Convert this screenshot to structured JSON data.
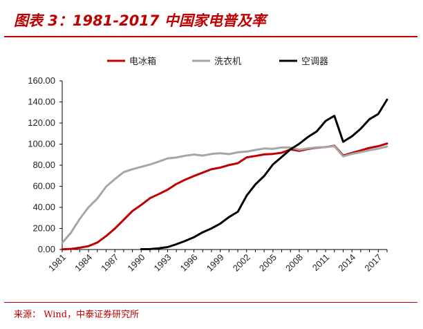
{
  "header": {
    "title": "图表 3：1981-2017 中国家电普及率"
  },
  "footer": {
    "source": "来源： Wind，中泰证券研究所"
  },
  "colors": {
    "brand": "#c00000",
    "fridge": "#c00000",
    "washer": "#a6a6a6",
    "ac": "#000000"
  },
  "chart_data": {
    "type": "line",
    "title": "",
    "xlabel": "",
    "ylabel": "",
    "ylim": [
      0,
      160
    ],
    "yticks": [
      "0.00",
      "20.00",
      "40.00",
      "60.00",
      "80.00",
      "100.00",
      "120.00",
      "140.00",
      "160.00"
    ],
    "xlim": [
      1981,
      2018
    ],
    "xticks": [
      "1981",
      "1984",
      "1987",
      "1990",
      "1993",
      "1996",
      "1999",
      "2002",
      "2005",
      "2008",
      "2011",
      "2014",
      "2017"
    ],
    "legend_position": "top-center",
    "grid": false,
    "series": [
      {
        "name": "电冰箱",
        "color": "#c00000",
        "x": [
          1981,
          1982,
          1983,
          1984,
          1985,
          1986,
          1987,
          1988,
          1989,
          1990,
          1991,
          1992,
          1993,
          1994,
          1995,
          1996,
          1997,
          1998,
          1999,
          2000,
          2001,
          2002,
          2003,
          2004,
          2005,
          2006,
          2007,
          2008,
          2009,
          2010,
          2011,
          2012,
          2013,
          2014,
          2015,
          2016,
          2017,
          2018
        ],
        "y": [
          0.2,
          0.6,
          1.7,
          3.2,
          6.6,
          12.7,
          19.9,
          28.1,
          36.5,
          42.3,
          48.7,
          52.6,
          56.7,
          62.1,
          66.2,
          69.7,
          72.9,
          76.1,
          77.7,
          80.1,
          81.9,
          87.4,
          88.7,
          90.2,
          90.7,
          91.8,
          95.0,
          93.6,
          95.4,
          96.6,
          97.2,
          98.5,
          89.2,
          91.7,
          94.0,
          96.4,
          98.0,
          100.5
        ]
      },
      {
        "name": "洗衣机",
        "color": "#a6a6a6",
        "x": [
          1981,
          1982,
          1983,
          1984,
          1985,
          1986,
          1987,
          1988,
          1989,
          1990,
          1991,
          1992,
          1993,
          1994,
          1995,
          1996,
          1997,
          1998,
          1999,
          2000,
          2001,
          2002,
          2003,
          2004,
          2005,
          2006,
          2007,
          2008,
          2009,
          2010,
          2011,
          2012,
          2013,
          2014,
          2015,
          2016,
          2017,
          2018
        ],
        "y": [
          6.3,
          16.0,
          29.1,
          40.1,
          48.3,
          59.7,
          66.8,
          73.4,
          76.2,
          78.4,
          80.6,
          83.4,
          86.4,
          87.3,
          89.0,
          90.1,
          89.1,
          90.6,
          91.4,
          90.5,
          92.2,
          92.9,
          94.4,
          95.9,
          95.5,
          96.8,
          96.8,
          94.7,
          96.0,
          96.9,
          97.1,
          98.0,
          88.4,
          90.7,
          92.3,
          94.2,
          95.7,
          97.7
        ]
      },
      {
        "name": "空调器",
        "color": "#000000",
        "x": [
          1990,
          1991,
          1992,
          1993,
          1994,
          1995,
          1996,
          1997,
          1998,
          1999,
          2000,
          2001,
          2002,
          2003,
          2004,
          2005,
          2006,
          2007,
          2008,
          2009,
          2010,
          2011,
          2012,
          2013,
          2014,
          2015,
          2016,
          2017,
          2018
        ],
        "y": [
          0.3,
          0.4,
          1.2,
          2.3,
          5.0,
          8.1,
          11.6,
          16.3,
          20.0,
          24.5,
          30.8,
          35.8,
          51.1,
          61.8,
          69.8,
          80.7,
          87.8,
          95.1,
          100.3,
          106.8,
          112.1,
          122.0,
          126.8,
          102.2,
          107.4,
          114.6,
          123.7,
          128.6,
          142.2
        ]
      }
    ]
  }
}
